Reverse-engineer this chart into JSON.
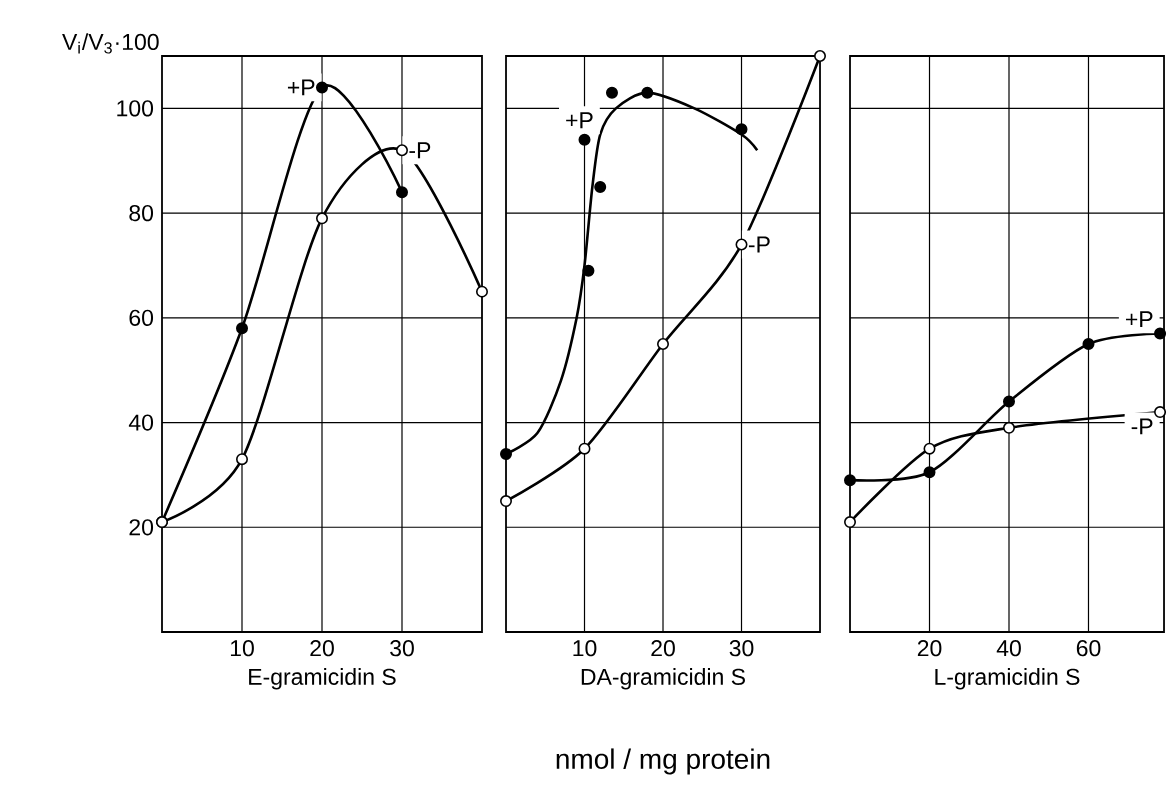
{
  "chart_data": [
    {
      "type": "line",
      "ylabel": "V$_{i}$/V$_{3}$·100",
      "xlabel": "E-gramicidin S",
      "xlim": [
        0,
        40
      ],
      "xticks": [
        10,
        20,
        30
      ],
      "ylim": [
        0,
        110
      ],
      "yticks": [
        20,
        40,
        60,
        80,
        100
      ],
      "grid": true,
      "series": [
        {
          "name": "+P",
          "color": "#000000",
          "marker": "circle",
          "x": [
            0,
            10,
            20,
            30
          ],
          "values": [
            21,
            58,
            104,
            84
          ]
        },
        {
          "name": "-P",
          "color": "#000000",
          "marker": "circle",
          "colors": [
            "#ffffff",
            "#ffffff",
            "#ffffff",
            "#ffffff",
            "#ffffff"
          ],
          "x": [
            0,
            10,
            20,
            30,
            40
          ],
          "values": [
            21,
            33,
            79,
            92,
            65
          ]
        }
      ]
    },
    {
      "type": "line",
      "xlabel": "DA-gramicidin S",
      "annotations": [
        "nmol / mg  protein"
      ],
      "xlim": [
        0,
        40
      ],
      "xticks": [
        10,
        20,
        30
      ],
      "ylim": [
        0,
        110
      ],
      "yticks": [
        20,
        40,
        60,
        80,
        100
      ],
      "grid": true,
      "tick_labels": "x",
      "series": [
        {
          "type": "scatter",
          "color": "#000000",
          "marker": "circle",
          "x": [
            0,
            10,
            10.5,
            12,
            13.5,
            18,
            30
          ],
          "values": [
            34,
            94,
            69,
            85,
            103,
            103,
            96
          ]
        },
        {
          "name": "+P",
          "type": "line",
          "color": "#000000",
          "marker": "none",
          "x": [
            0,
            4,
            7,
            9,
            10,
            11,
            12,
            14,
            18,
            24,
            30,
            32
          ],
          "values": [
            34,
            38,
            48,
            60,
            70,
            85,
            95,
            100,
            103,
            100,
            95,
            92
          ]
        },
        {
          "name": "-P",
          "color": "#000000",
          "marker": "circle",
          "colors": [
            "#ffffff",
            "#ffffff",
            "#ffffff",
            "#ffffff",
            "#ffffff"
          ],
          "x": [
            0,
            10,
            20,
            30,
            40
          ],
          "values": [
            25,
            35,
            55,
            74,
            110
          ]
        }
      ]
    },
    {
      "type": "line",
      "xlabel": "L-gramicidin S",
      "xlim": [
        0,
        79
      ],
      "xticks": [
        20,
        40,
        60
      ],
      "ylim": [
        0,
        110
      ],
      "yticks": [
        20,
        40,
        60,
        80,
        100
      ],
      "grid": true,
      "tick_labels": "x",
      "series": [
        {
          "name": "+P",
          "color": "#000000",
          "marker": "circle",
          "x": [
            0,
            20,
            40,
            60,
            78
          ],
          "values": [
            29,
            30.5,
            44,
            55,
            57
          ]
        },
        {
          "name": "-P",
          "color": "#000000",
          "marker": "circle",
          "colors": [
            "#ffffff",
            "#ffffff",
            "#ffffff",
            "#ffffff"
          ],
          "x": [
            0,
            20,
            40,
            78
          ],
          "values": [
            21,
            35,
            39,
            42
          ]
        }
      ]
    }
  ]
}
